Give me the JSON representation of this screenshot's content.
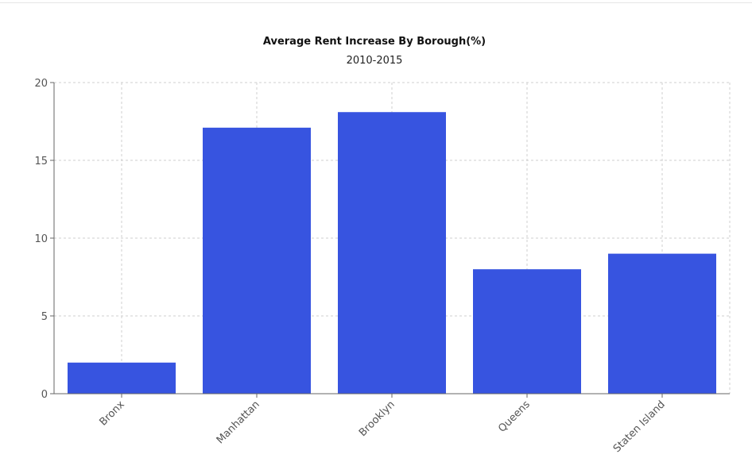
{
  "chart_data": {
    "type": "bar",
    "title": "Average Rent Increase By Borough(%)",
    "subtitle": "2010-2015",
    "categories": [
      "Bronx",
      "Manhattan",
      "Brooklyn",
      "Queens",
      "Staten Island"
    ],
    "values": [
      2,
      17.1,
      18.1,
      8,
      9
    ],
    "ylim": [
      0,
      20
    ],
    "yticks": [
      "0",
      "5",
      "10",
      "15",
      "20"
    ],
    "xlabel": "",
    "ylabel": "",
    "grid": true,
    "bar_color": "#3754e0"
  }
}
